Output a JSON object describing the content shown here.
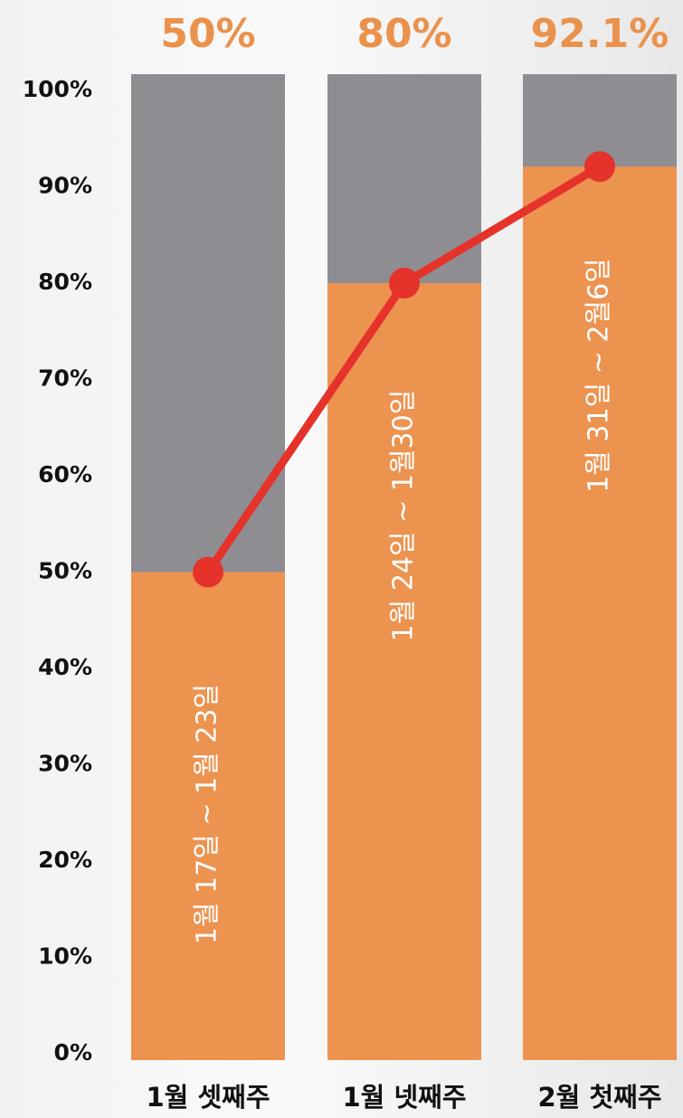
{
  "chart_data": {
    "type": "bar",
    "categories": [
      "1월 셋째주",
      "1월 넷째주",
      "2월 첫째주"
    ],
    "values": [
      50,
      80,
      92.1
    ],
    "value_labels": [
      "50%",
      "80%",
      "92.1%"
    ],
    "bar_labels": [
      "1월 17일 ~ 1월 23일",
      "1월 24일 ~ 1월30일",
      "1월 31일 ~ 2월6일"
    ],
    "color": "#ec9350",
    "track_color": "#8e8e92",
    "line_color": "#e5322a",
    "label_color": "#ea924c",
    "line": true,
    "ylim": [
      0,
      100
    ],
    "yticks": [
      {
        "value": 0,
        "label": "0%"
      },
      {
        "value": 10,
        "label": "10%"
      },
      {
        "value": 20,
        "label": "20%"
      },
      {
        "value": 30,
        "label": "30%"
      },
      {
        "value": 40,
        "label": "40%"
      },
      {
        "value": 50,
        "label": "50%"
      },
      {
        "value": 60,
        "label": "60%"
      },
      {
        "value": 70,
        "label": "70%"
      },
      {
        "value": 80,
        "label": "80%"
      },
      {
        "value": 90,
        "label": "90%"
      },
      {
        "value": 100,
        "label": "100%"
      }
    ]
  }
}
